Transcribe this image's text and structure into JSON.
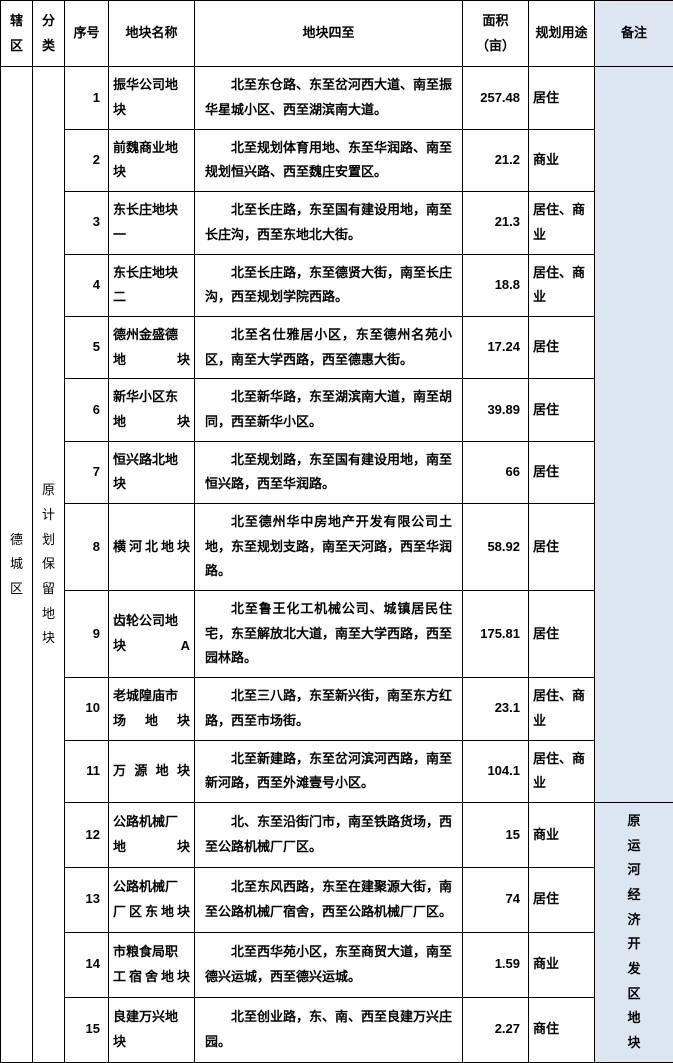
{
  "headers": {
    "region": "辖区",
    "category": "分类",
    "no": "序号",
    "name": "地块名称",
    "bounds": "地块四至",
    "area": "面积（亩）",
    "use": "规划用途",
    "remark": "备注"
  },
  "region": "德城区",
  "category": "原计划保留地块",
  "remarkText": "原运河经济开发区地块",
  "rows": [
    {
      "no": "1",
      "name": "振华公司地块",
      "bounds": "北至东仓路、东至岔河西大道、南至振华星城小区、西至湖滨南大道。",
      "area": "257.48",
      "use": "居住"
    },
    {
      "no": "2",
      "name": "前魏商业地块",
      "bounds": "北至规划体育用地、东至华润路、南至规划恒兴路、西至魏庄安置区。",
      "area": "21.2",
      "use": "商业"
    },
    {
      "no": "3",
      "name": "东长庄地块一",
      "bounds": "北至长庄路，东至国有建设用地，南至长庄沟，西至东地北大街。",
      "area": "21.3",
      "use": "居住、商业"
    },
    {
      "no": "4",
      "name": "东长庄地块二",
      "bounds": "北至长庄路，东至德贤大街，南至长庄沟，西至规划学院西路。",
      "area": "18.8",
      "use": "居住、商业"
    },
    {
      "no": "5",
      "name": "德州金盛德地块",
      "bounds": "北至名仕雅居小区，东至德州名苑小区，南至大学西路，西至德惠大街。",
      "area": "17.24",
      "use": "居住"
    },
    {
      "no": "6",
      "name": "新华小区东地块",
      "bounds": "北至新华路，东至湖滨南大道，南至胡同，西至新华小区。",
      "area": "39.89",
      "use": "居住"
    },
    {
      "no": "7",
      "name": "恒兴路北地块",
      "bounds": "北至规划路，东至国有建设用地，南至恒兴路，西至华润路。",
      "area": "66",
      "use": "居住"
    },
    {
      "no": "8",
      "name": "横河北地块",
      "bounds": "北至德州华中房地产开发有限公司土地，东至规划支路，南至天河路，西至华润路。",
      "area": "58.92",
      "use": "居住"
    },
    {
      "no": "9",
      "name": "齿轮公司地块A",
      "bounds": "北至鲁王化工机械公司、城镇居民住宅，东至解放北大道，南至大学西路，西至园林路。",
      "area": "175.81",
      "use": "居住"
    },
    {
      "no": "10",
      "name": "老城隍庙市场地块",
      "bounds": "北至三八路，东至新兴街，南至东方红路，西至市场街。",
      "area": "23.1",
      "use": "居住、商业"
    },
    {
      "no": "11",
      "name": "万源地块",
      "bounds": "北至新建路，东至岔河滨河西路，南至新河路，西至外滩壹号小区。",
      "area": "104.1",
      "use": "居住、商业"
    },
    {
      "no": "12",
      "name": "公路机械厂地块",
      "bounds": "北、东至沿街门市，南至铁路货场，西至公路机械厂厂区。",
      "area": "15",
      "use": "商业"
    },
    {
      "no": "13",
      "name": "公路机械厂厂区东地块",
      "bounds": "北至东风西路，东至在建聚源大街，南至公路机械厂宿舍，西至公路机械厂厂区。",
      "area": "74",
      "use": "居住"
    },
    {
      "no": "14",
      "name": "市粮食局职工宿舍地块",
      "bounds": "北至西华苑小区，东至商贸大道，南至德兴运城，西至德兴运城。",
      "area": "1.59",
      "use": "商业"
    },
    {
      "no": "15",
      "name": "良建万兴地块",
      "bounds": "北至创业路，东、南、西至良建万兴庄园。",
      "area": "2.27",
      "use": "商住"
    }
  ]
}
